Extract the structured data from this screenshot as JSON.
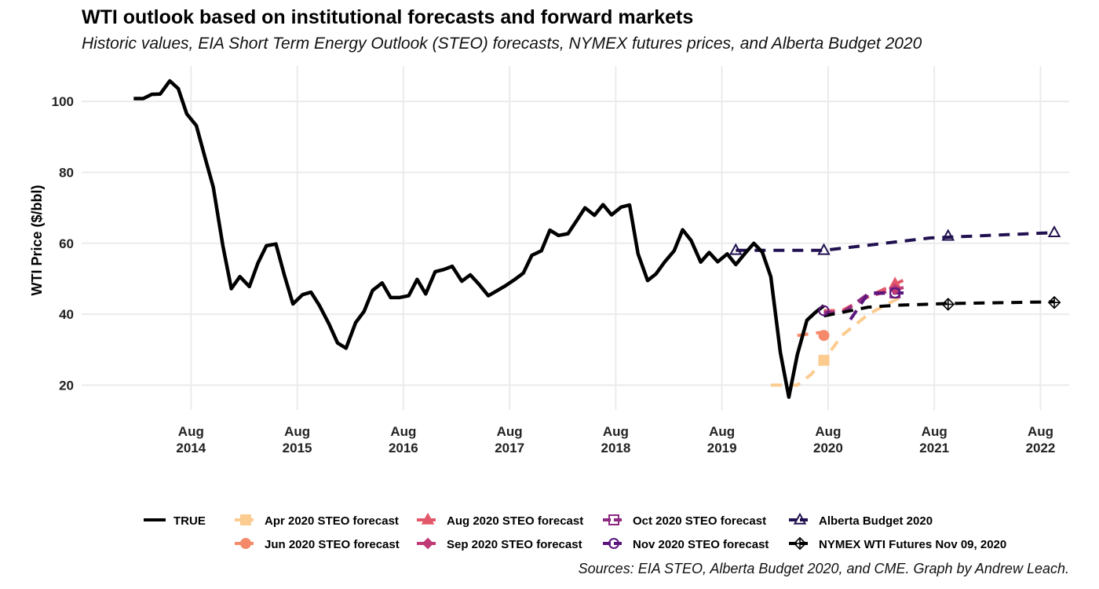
{
  "header": {
    "title": "WTI outlook based on institutional forecasts and forward markets",
    "subtitle": "Historic values, EIA Short Term Energy Outlook (STEO) forecasts, NYMEX futures prices, and Alberta Budget 2020"
  },
  "caption": "Sources: EIA STEO, Alberta Budget 2020, and CME. Graph by Andrew Leach.",
  "chart_data": {
    "type": "line",
    "ylabel": "WTI Price ($/bbl)",
    "xlabel": "",
    "x_unit": "year (decimal)",
    "xlim": [
      2013.55,
      2022.85
    ],
    "ylim": [
      13,
      110
    ],
    "yticks": [
      20,
      40,
      60,
      80,
      100
    ],
    "xticks": [
      {
        "x": 2014.58,
        "month": "Aug",
        "year": "2014"
      },
      {
        "x": 2015.58,
        "month": "Aug",
        "year": "2015"
      },
      {
        "x": 2016.58,
        "month": "Aug",
        "year": "2016"
      },
      {
        "x": 2017.58,
        "month": "Aug",
        "year": "2017"
      },
      {
        "x": 2018.58,
        "month": "Aug",
        "year": "2018"
      },
      {
        "x": 2019.58,
        "month": "Aug",
        "year": "2019"
      },
      {
        "x": 2020.58,
        "month": "Aug",
        "year": "2020"
      },
      {
        "x": 2021.58,
        "month": "Aug",
        "year": "2021"
      },
      {
        "x": 2022.58,
        "month": "Aug",
        "year": "2022"
      }
    ],
    "grid": true,
    "legend_position": "bottom",
    "series": [
      {
        "name": "TRUE",
        "color": "#000000",
        "dash": "none",
        "width": 4.5,
        "marker": "none",
        "x": [
          2014.04,
          2014.13,
          2014.21,
          2014.29,
          2014.38,
          2014.46,
          2014.54,
          2014.63,
          2014.71,
          2014.79,
          2014.88,
          2014.96,
          2015.04,
          2015.13,
          2015.21,
          2015.29,
          2015.38,
          2015.46,
          2015.54,
          2015.63,
          2015.71,
          2015.79,
          2015.88,
          2015.96,
          2016.04,
          2016.13,
          2016.21,
          2016.29,
          2016.38,
          2016.46,
          2016.54,
          2016.63,
          2016.71,
          2016.79,
          2016.88,
          2016.96,
          2017.04,
          2017.13,
          2017.21,
          2017.29,
          2017.38,
          2017.46,
          2017.54,
          2017.63,
          2017.71,
          2017.79,
          2017.88,
          2017.96,
          2018.04,
          2018.13,
          2018.21,
          2018.29,
          2018.38,
          2018.46,
          2018.54,
          2018.63,
          2018.71,
          2018.79,
          2018.88,
          2018.96,
          2019.04,
          2019.13,
          2019.21,
          2019.29,
          2019.38,
          2019.46,
          2019.54,
          2019.63,
          2019.71,
          2019.79,
          2019.88,
          2019.96,
          2020.04,
          2020.13,
          2020.21,
          2020.29,
          2020.38,
          2020.46,
          2020.54
        ],
        "y": [
          100.8,
          100.8,
          102.0,
          102.1,
          105.8,
          103.6,
          96.5,
          93.2,
          84.4,
          75.8,
          59.3,
          47.2,
          50.6,
          47.8,
          54.4,
          59.3,
          59.8,
          50.9,
          42.9,
          45.5,
          46.2,
          42.4,
          37.2,
          31.9,
          30.4,
          37.6,
          40.8,
          46.7,
          48.8,
          44.7,
          44.7,
          45.2,
          49.8,
          45.7,
          52.0,
          52.6,
          53.5,
          49.3,
          51.1,
          48.5,
          45.2,
          46.6,
          48.0,
          49.8,
          51.6,
          56.6,
          57.9,
          63.7,
          62.2,
          62.7,
          66.3,
          70.0,
          67.9,
          70.9,
          68.0,
          70.2,
          70.8,
          57.0,
          49.5,
          51.4,
          54.7,
          57.9,
          63.8,
          60.8,
          54.7,
          57.4,
          54.8,
          57.0,
          54.0,
          56.9,
          60.0,
          57.5,
          50.6,
          29.2,
          16.6,
          28.6,
          38.3,
          40.5,
          42.4
        ]
      },
      {
        "name": "Apr 2020 STEO forecast",
        "color": "#FCCB8F",
        "dash": "14,10",
        "width": 4,
        "marker": "square",
        "x": [
          2020.04,
          2020.17,
          2020.29,
          2020.42,
          2020.54,
          2020.71,
          2020.96,
          2021.21,
          2021.29
        ],
        "y": [
          20,
          20,
          20,
          23,
          27,
          34,
          40,
          44,
          45
        ],
        "marker_x": [
          2020.54
        ],
        "marker_y": [
          27
        ]
      },
      {
        "name": "Jun 2020 STEO forecast",
        "color": "#F48A6A",
        "dash": "14,10",
        "width": 4,
        "marker": "circle",
        "x": [
          2020.29,
          2020.42,
          2020.54
        ],
        "y": [
          34,
          34.5,
          35
        ],
        "marker_x": [
          2020.54
        ],
        "marker_y": [
          34
        ]
      },
      {
        "name": "Aug 2020 STEO forecast",
        "color": "#E3576A",
        "dash": "14,10",
        "width": 4,
        "marker": "triangle",
        "x": [
          2020.54,
          2020.71,
          2020.96,
          2021.21,
          2021.32
        ],
        "y": [
          41,
          41,
          45,
          48.5,
          50
        ],
        "marker_x": [
          2021.21
        ],
        "marker_y": [
          48.5
        ]
      },
      {
        "name": "Sep 2020 STEO forecast",
        "color": "#C03A76",
        "dash": "14,10",
        "width": 4,
        "marker": "diamond",
        "x": [
          2020.54,
          2020.71,
          2020.96,
          2021.21,
          2021.29
        ],
        "y": [
          40.5,
          40.5,
          45,
          47,
          47.5
        ],
        "marker_x": [
          2021.21
        ],
        "marker_y": [
          47
        ]
      },
      {
        "name": "Oct 2020 STEO forecast",
        "color": "#8C2981",
        "dash": "14,10",
        "width": 4,
        "marker": "square-open",
        "x": [
          2020.54,
          2020.71,
          2020.96,
          2021.21,
          2021.29
        ],
        "y": [
          40.5,
          40.3,
          45.8,
          46,
          46
        ],
        "marker_x": [
          2021.21
        ],
        "marker_y": [
          46
        ]
      },
      {
        "name": "Nov 2020 STEO forecast",
        "color": "#5A167E",
        "dash": "14,10",
        "width": 4,
        "marker": "circle-open",
        "x": [
          2020.79,
          2020.96,
          2021.21,
          2021.29
        ],
        "y": [
          38.5,
          46,
          46,
          46
        ],
        "marker_x": [
          2020.54,
          2021.21
        ],
        "marker_y": [
          41,
          46
        ]
      },
      {
        "name": "Alberta Budget 2020",
        "color": "#221150",
        "dash": "14,10",
        "width": 4,
        "marker": "triangle-open",
        "x": [
          2019.71,
          2020.54,
          2021.54,
          2022.71
        ],
        "y": [
          58,
          58,
          61.5,
          63
        ],
        "marker_x": [
          2019.71,
          2020.54,
          2021.71,
          2022.71
        ],
        "marker_y": [
          58,
          58,
          62,
          63
        ]
      },
      {
        "name": "NYMEX WTI Futures Nov 09, 2020",
        "color": "#000000",
        "dash": "14,10",
        "width": 4,
        "marker": "diamond-plus",
        "x": [
          2020.54,
          2020.96,
          2021.21,
          2021.71,
          2022.71
        ],
        "y": [
          39.5,
          42,
          42.5,
          43,
          43.5
        ],
        "marker_x": [
          2021.71,
          2022.71
        ],
        "marker_y": [
          42.8,
          43.3
        ]
      }
    ]
  }
}
